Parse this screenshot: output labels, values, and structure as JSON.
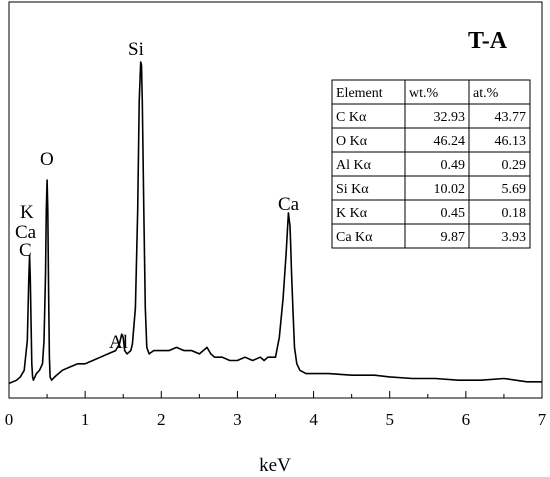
{
  "chart_data": {
    "type": "line",
    "title": "T-A",
    "xlabel": "keV",
    "ylabel": "",
    "xlim": [
      0,
      7
    ],
    "ylim": [
      0,
      100
    ],
    "x_ticks": [
      0,
      1,
      2,
      3,
      4,
      5,
      6,
      7
    ],
    "y_ticks_shown": false,
    "grid": false,
    "series": [
      {
        "x": [
          0,
          0.05,
          0.1,
          0.15,
          0.2,
          0.24,
          0.26,
          0.27,
          0.28,
          0.29,
          0.3,
          0.31,
          0.32,
          0.34,
          0.36,
          0.4,
          0.44,
          0.46,
          0.48,
          0.49,
          0.5,
          0.51,
          0.52,
          0.53,
          0.54,
          0.56,
          0.6,
          0.65,
          0.7,
          0.8,
          0.9,
          1.0,
          1.1,
          1.2,
          1.3,
          1.4,
          1.45,
          1.48,
          1.5,
          1.52,
          1.55,
          1.6,
          1.62,
          1.66,
          1.69,
          1.71,
          1.73,
          1.74,
          1.75,
          1.77,
          1.79,
          1.81,
          1.84,
          1.9,
          2.0,
          2.1,
          2.2,
          2.3,
          2.4,
          2.5,
          2.6,
          2.65,
          2.7,
          2.8,
          2.9,
          3.0,
          3.1,
          3.2,
          3.3,
          3.35,
          3.4,
          3.5,
          3.55,
          3.6,
          3.64,
          3.67,
          3.69,
          3.7,
          3.71,
          3.73,
          3.75,
          3.78,
          3.82,
          3.9,
          4.0,
          4.2,
          4.5,
          4.8,
          5.0,
          5.3,
          5.6,
          5.9,
          6.2,
          6.5,
          6.8,
          7.0
        ],
        "y": [
          2,
          2.5,
          3,
          4,
          6,
          15,
          34,
          41,
          34,
          20,
          8,
          4,
          3,
          4,
          5,
          6,
          8,
          15,
          35,
          55,
          64,
          55,
          30,
          10,
          4,
          3,
          4,
          5,
          6,
          7,
          8,
          8,
          9,
          10,
          11,
          12,
          14,
          17,
          16,
          12,
          11,
          12,
          14,
          25,
          55,
          88,
          100,
          99,
          88,
          55,
          25,
          13,
          11,
          12,
          12,
          12,
          13,
          12,
          12,
          11,
          13,
          11,
          10,
          10,
          9,
          9,
          10,
          9,
          10,
          9,
          10,
          10,
          16,
          28,
          42,
          54,
          50,
          44,
          36,
          24,
          13,
          8,
          6,
          5,
          5,
          5,
          4.5,
          4.5,
          4,
          3.5,
          3.5,
          3,
          3,
          3.5,
          2.5,
          2.5
        ]
      }
    ],
    "annotations": [
      "C",
      "Ca",
      "K",
      "O",
      "Al",
      "Si",
      "Ca"
    ],
    "table": {
      "columns": [
        "Element",
        "wt.%",
        "at.%"
      ],
      "rows": [
        [
          "C Kα",
          "32.93",
          "43.77"
        ],
        [
          "O Kα",
          "46.24",
          "46.13"
        ],
        [
          "Al Kα",
          "0.49",
          "0.29"
        ],
        [
          "Si Kα",
          "10.02",
          "5.69"
        ],
        [
          "K Kα",
          "0.45",
          "0.18"
        ],
        [
          "Ca Kα",
          "9.87",
          "3.93"
        ]
      ]
    }
  }
}
